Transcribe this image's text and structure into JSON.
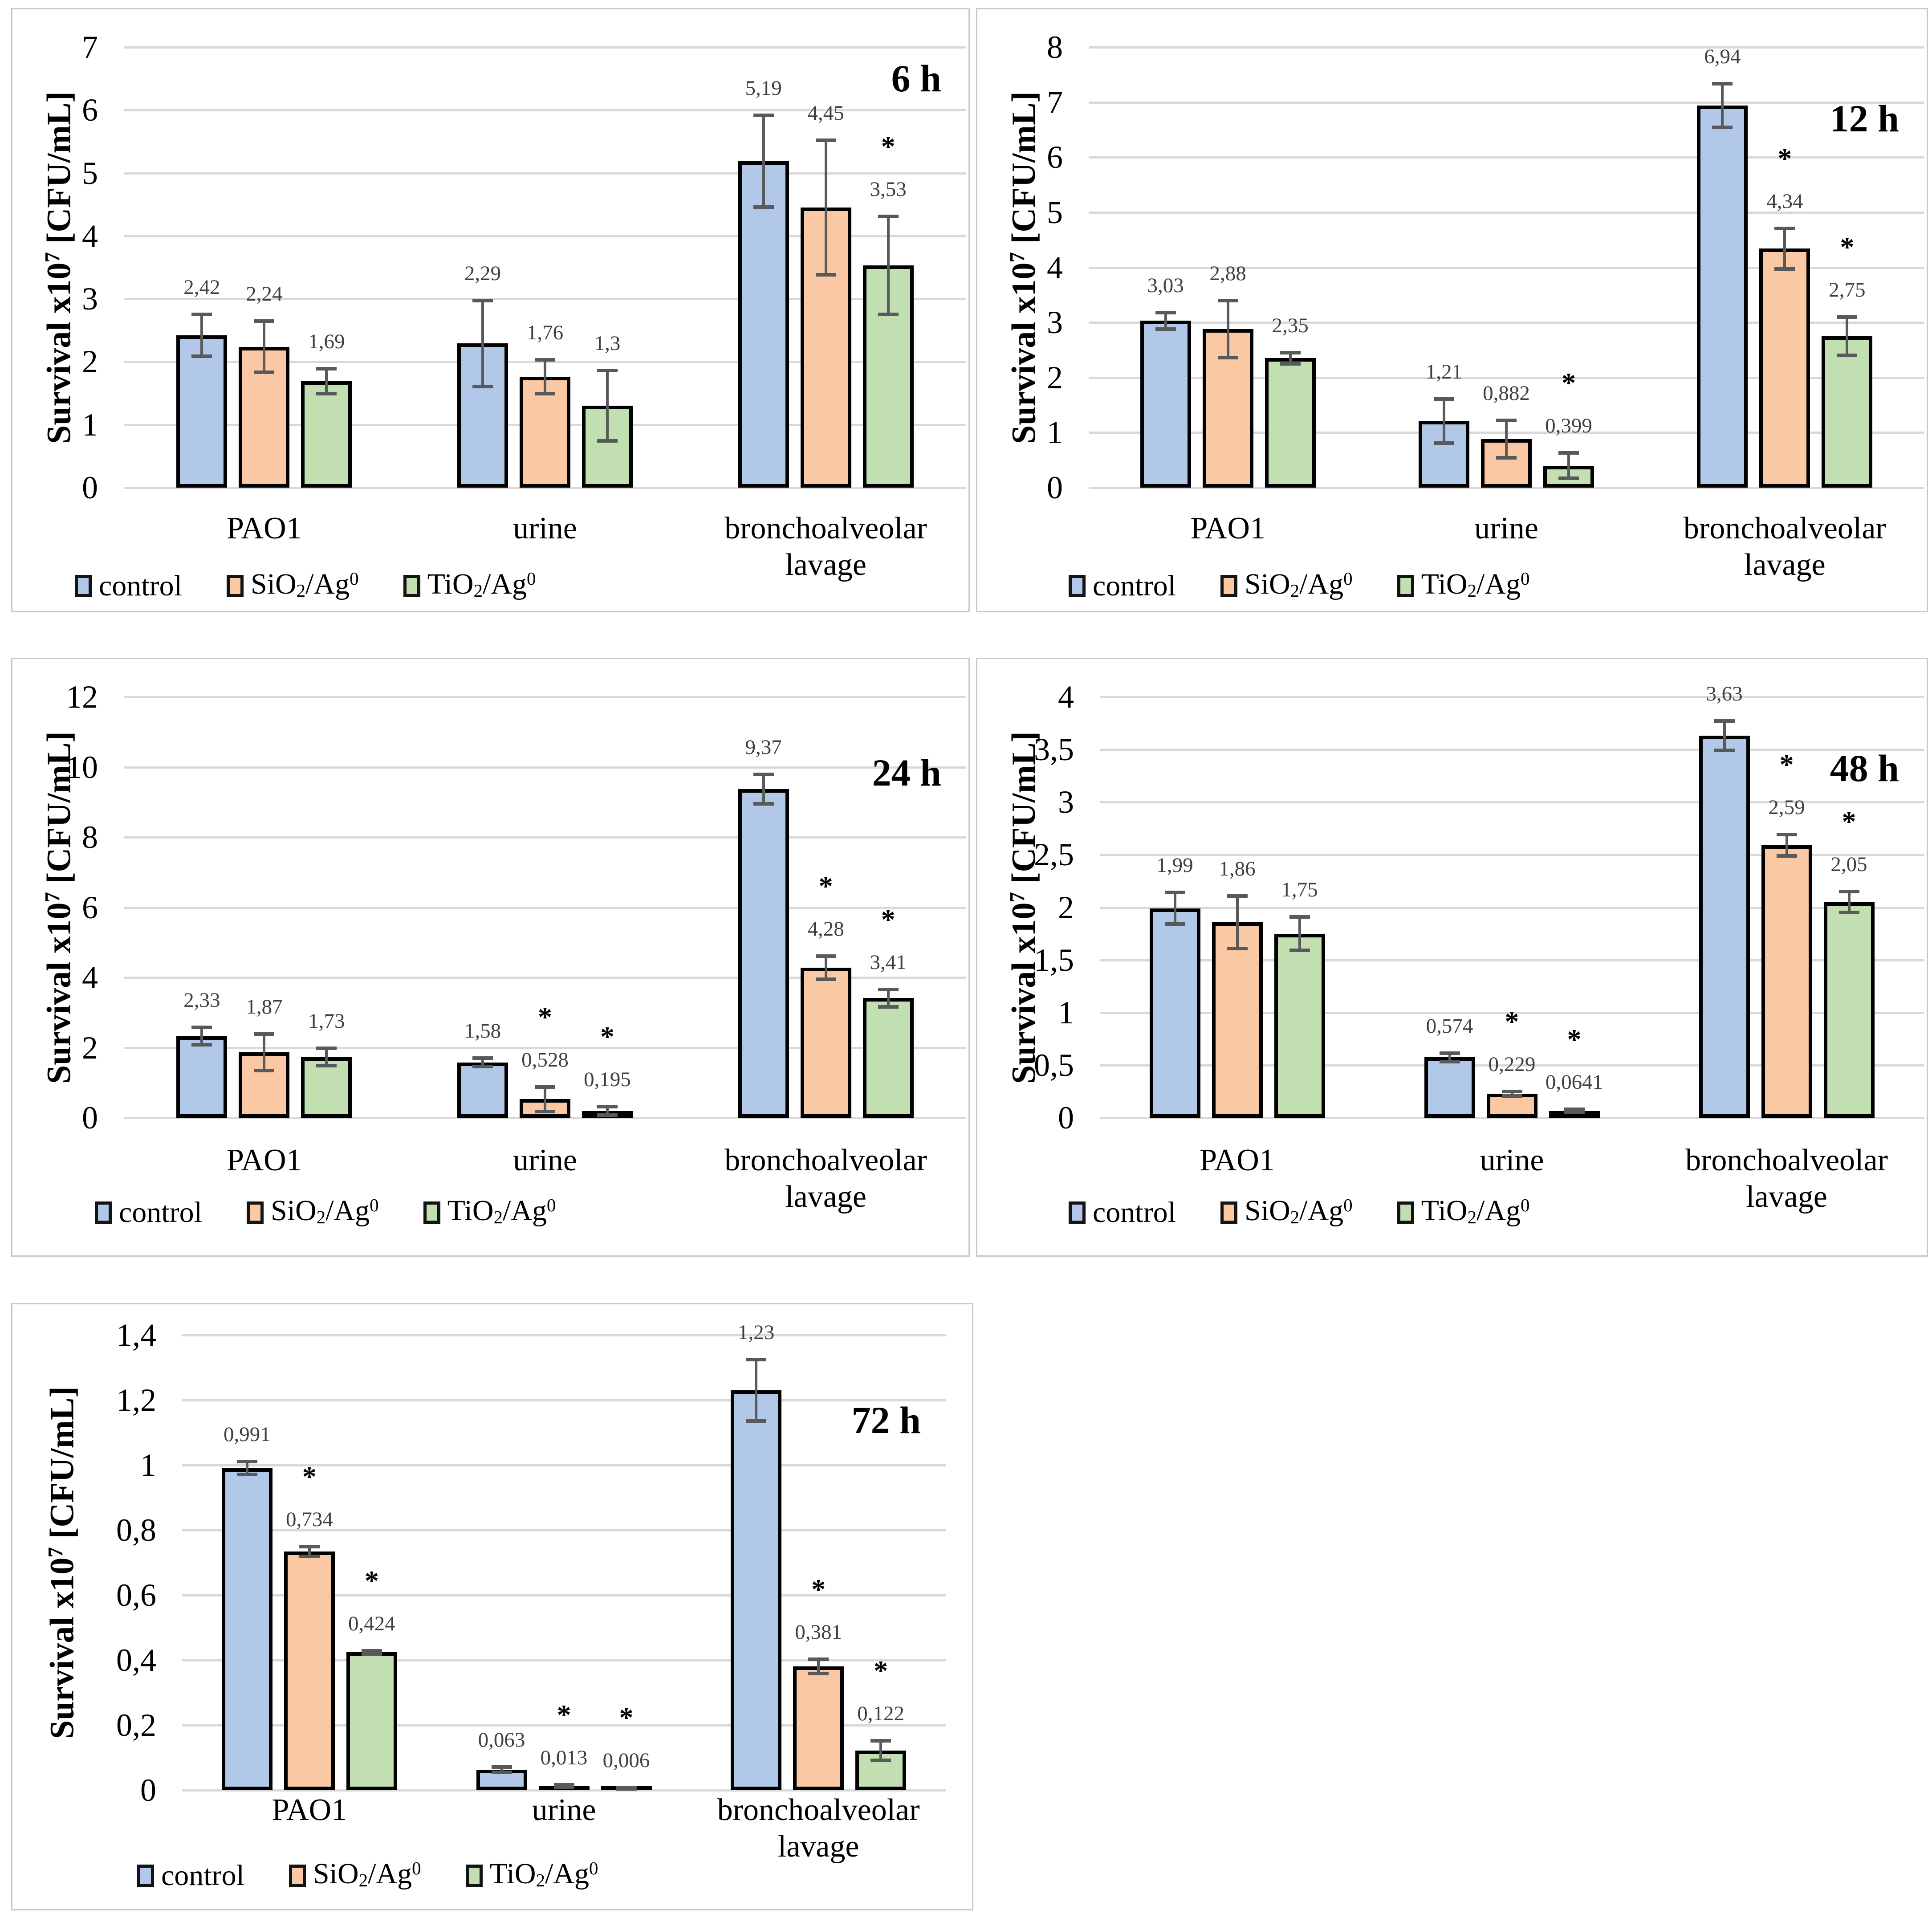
{
  "y_axis_title_parts": {
    "pre": "Survival x10",
    "sup": "7",
    "post": " [CFU/mL]"
  },
  "significance_marker": "*",
  "colors": {
    "control": "#b1c8e8",
    "sio2": "#fac8a2",
    "tio2": "#c2dfb2",
    "bar_border": "#000000",
    "error_bar": "#58595b",
    "gridline": "#d9d9d9",
    "value_label": "#3f3f3f",
    "panel_border": "#c9c9c9"
  },
  "legend": {
    "items": [
      {
        "key": "control",
        "parts": [
          {
            "t": "control"
          }
        ]
      },
      {
        "key": "sio2",
        "parts": [
          {
            "t": "SiO"
          },
          {
            "sub": "2"
          },
          {
            "t": "/Ag"
          },
          {
            "sup": "0"
          }
        ]
      },
      {
        "key": "tio2",
        "parts": [
          {
            "t": "TiO"
          },
          {
            "sub": "2"
          },
          {
            "t": "/Ag"
          },
          {
            "sup": "0"
          }
        ]
      }
    ]
  },
  "categories": [
    {
      "lines": [
        "PAO1"
      ]
    },
    {
      "lines": [
        "urine"
      ]
    },
    {
      "lines": [
        "bronchoalveolar",
        "lavage"
      ]
    }
  ],
  "chart_data": [
    {
      "type": "bar",
      "title": "6 h",
      "ylabel": "Survival x10^7 [CFU/mL]",
      "ylim": [
        0,
        7
      ],
      "ytick_values": [
        0,
        1,
        2,
        3,
        4,
        5,
        6,
        7
      ],
      "ytick_labels": [
        "0",
        "1",
        "2",
        "3",
        "4",
        "5",
        "6",
        "7"
      ],
      "categories": [
        "PAO1",
        "urine",
        "bronchoalveolar lavage"
      ],
      "series": [
        {
          "key": "control",
          "name": "control",
          "values": [
            2.42,
            2.29,
            5.19
          ],
          "errors": [
            0.33,
            0.68,
            0.73
          ],
          "value_labels": [
            "2,42",
            "2,29",
            "5,19"
          ],
          "significant": [
            false,
            false,
            false
          ]
        },
        {
          "key": "sio2",
          "name": "SiO2/Ag0",
          "values": [
            2.24,
            1.76,
            4.45
          ],
          "errors": [
            0.41,
            0.27,
            1.07
          ],
          "value_labels": [
            "2,24",
            "1,76",
            "4,45"
          ],
          "significant": [
            false,
            false,
            false
          ]
        },
        {
          "key": "tio2",
          "name": "TiO2/Ag0",
          "values": [
            1.69,
            1.3,
            3.53
          ],
          "errors": [
            0.2,
            0.56,
            0.78
          ],
          "value_labels": [
            "1,69",
            "1,3",
            "3,53"
          ],
          "significant": [
            false,
            false,
            true
          ]
        }
      ]
    },
    {
      "type": "bar",
      "title": "12 h",
      "ylabel": "Survival x10^7 [CFU/mL]",
      "ylim": [
        0,
        8
      ],
      "ytick_values": [
        0,
        1,
        2,
        3,
        4,
        5,
        6,
        7,
        8
      ],
      "ytick_labels": [
        "0",
        "1",
        "2",
        "3",
        "4",
        "5",
        "6",
        "7",
        "8"
      ],
      "categories": [
        "PAO1",
        "urine",
        "bronchoalveolar lavage"
      ],
      "series": [
        {
          "key": "control",
          "name": "control",
          "values": [
            3.03,
            1.21,
            6.94
          ],
          "errors": [
            0.15,
            0.4,
            0.4
          ],
          "value_labels": [
            "3,03",
            "1,21",
            "6,94"
          ],
          "significant": [
            false,
            false,
            false
          ]
        },
        {
          "key": "sio2",
          "name": "SiO2/Ag0",
          "values": [
            2.88,
            0.882,
            4.34
          ],
          "errors": [
            0.52,
            0.34,
            0.37
          ],
          "value_labels": [
            "2,88",
            "0,882",
            "4,34"
          ],
          "significant": [
            false,
            false,
            true
          ]
        },
        {
          "key": "tio2",
          "name": "TiO2/Ag0",
          "values": [
            2.35,
            0.399,
            2.75
          ],
          "errors": [
            0.1,
            0.23,
            0.35
          ],
          "value_labels": [
            "2,35",
            "0,399",
            "2,75"
          ],
          "significant": [
            false,
            true,
            true
          ]
        }
      ]
    },
    {
      "type": "bar",
      "title": "24 h",
      "ylabel": "Survival x10^7 [CFU/mL]",
      "ylim": [
        0,
        12
      ],
      "ytick_values": [
        0,
        2,
        4,
        6,
        8,
        10,
        12
      ],
      "ytick_labels": [
        "0",
        "2",
        "4",
        "6",
        "8",
        "10",
        "12"
      ],
      "categories": [
        "PAO1",
        "urine",
        "bronchoalveolar lavage"
      ],
      "series": [
        {
          "key": "control",
          "name": "control",
          "values": [
            2.33,
            1.58,
            9.37
          ],
          "errors": [
            0.25,
            0.12,
            0.42
          ],
          "value_labels": [
            "2,33",
            "1,58",
            "9,37"
          ],
          "significant": [
            false,
            false,
            false
          ]
        },
        {
          "key": "sio2",
          "name": "SiO2/Ag0",
          "values": [
            1.87,
            0.528,
            4.28
          ],
          "errors": [
            0.52,
            0.35,
            0.33
          ],
          "value_labels": [
            "1,87",
            "0,528",
            "4,28"
          ],
          "significant": [
            false,
            true,
            true
          ]
        },
        {
          "key": "tio2",
          "name": "TiO2/Ag0",
          "values": [
            1.73,
            0.195,
            3.41
          ],
          "errors": [
            0.25,
            0.12,
            0.25
          ],
          "value_labels": [
            "1,73",
            "0,195",
            "3,41"
          ],
          "significant": [
            false,
            true,
            true
          ]
        }
      ]
    },
    {
      "type": "bar",
      "title": "48 h",
      "ylabel": "Survival x10^7 [CFU/mL]",
      "ylim": [
        0,
        4
      ],
      "ytick_values": [
        0,
        0.5,
        1,
        1.5,
        2,
        2.5,
        3,
        3.5,
        4
      ],
      "ytick_labels": [
        "0",
        "0,5",
        "1",
        "1,5",
        "2",
        "2,5",
        "3",
        "3,5",
        "4"
      ],
      "categories": [
        "PAO1",
        "urine",
        "bronchoalveolar lavage"
      ],
      "series": [
        {
          "key": "control",
          "name": "control",
          "values": [
            1.99,
            0.574,
            3.63
          ],
          "errors": [
            0.15,
            0.04,
            0.14
          ],
          "value_labels": [
            "1,99",
            "0,574",
            "3,63"
          ],
          "significant": [
            false,
            false,
            false
          ]
        },
        {
          "key": "sio2",
          "name": "SiO2/Ag0",
          "values": [
            1.86,
            0.229,
            2.59
          ],
          "errors": [
            0.25,
            0.02,
            0.1
          ],
          "value_labels": [
            "1,86",
            "0,229",
            "2,59"
          ],
          "significant": [
            false,
            true,
            true
          ]
        },
        {
          "key": "tio2",
          "name": "TiO2/Ag0",
          "values": [
            1.75,
            0.0641,
            2.05
          ],
          "errors": [
            0.16,
            0.015,
            0.1
          ],
          "value_labels": [
            "1,75",
            "0,0641",
            "2,05"
          ],
          "significant": [
            false,
            true,
            true
          ]
        }
      ]
    },
    {
      "type": "bar",
      "title": "72 h",
      "ylabel": "Survival x10^7 [CFU/mL]",
      "ylim": [
        0,
        1.4
      ],
      "ytick_values": [
        0,
        0.2,
        0.4,
        0.6,
        0.8,
        1,
        1.2,
        1.4
      ],
      "ytick_labels": [
        "0",
        "0,2",
        "0,4",
        "0,6",
        "0,8",
        "1",
        "1,2",
        "1,4"
      ],
      "categories": [
        "PAO1",
        "urine",
        "bronchoalveolar lavage"
      ],
      "series": [
        {
          "key": "control",
          "name": "control",
          "values": [
            0.991,
            0.063,
            1.23
          ],
          "errors": [
            0.02,
            0.008,
            0.095
          ],
          "value_labels": [
            "0,991",
            "0,063",
            "1,23"
          ],
          "significant": [
            false,
            false,
            false
          ]
        },
        {
          "key": "sio2",
          "name": "SiO2/Ag0",
          "values": [
            0.734,
            0.013,
            0.381
          ],
          "errors": [
            0.015,
            0.003,
            0.022
          ],
          "value_labels": [
            "0,734",
            "0,013",
            "0,381"
          ],
          "significant": [
            true,
            true,
            true
          ]
        },
        {
          "key": "tio2",
          "name": "TiO2/Ag0",
          "values": [
            0.424,
            0.006,
            0.122
          ],
          "errors": [
            0.005,
            0.002,
            0.03
          ],
          "value_labels": [
            "0,424",
            "0,006",
            "0,122"
          ],
          "significant": [
            true,
            true,
            true
          ]
        }
      ]
    }
  ]
}
